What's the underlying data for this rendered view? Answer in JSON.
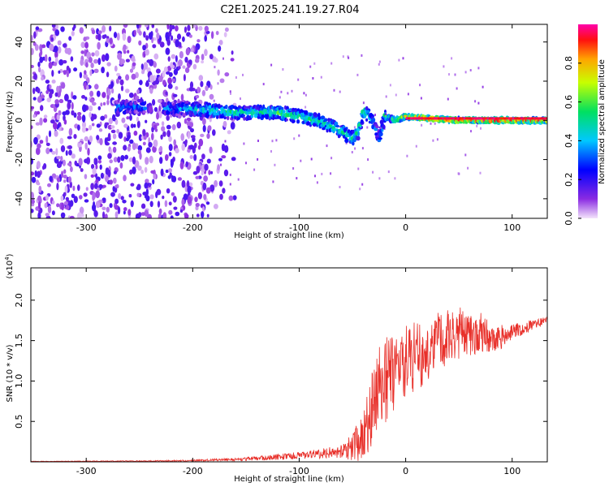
{
  "chart_data": [
    {
      "type": "heatmap",
      "title": "C2E1.2025.241.19.27.R04",
      "xlabel": "Height of straight line (km)",
      "ylabel": "Frequency (Hz)",
      "xlim": [
        -352,
        133
      ],
      "ylim": [
        -50,
        49
      ],
      "xticks": [
        -300,
        -200,
        -100,
        0,
        100
      ],
      "xtick_labels": [
        "-300",
        "-200",
        "-100",
        "0",
        "100"
      ],
      "yticks": [
        -40,
        -20,
        0,
        20,
        40
      ],
      "ytick_labels": [
        "-40",
        "-20",
        "0",
        "20",
        "40"
      ],
      "colorbar": {
        "label": "Normalized spectral amplitude",
        "range": [
          0,
          1
        ],
        "ticks": [
          0.0,
          0.2,
          0.4,
          0.6,
          0.8
        ],
        "tick_labels": [
          "0.0",
          "0.2",
          "0.4",
          "0.6",
          "0.8"
        ]
      },
      "track": {
        "x": [
          -270,
          -250,
          -225,
          -200,
          -180,
          -160,
          -140,
          -120,
          -100,
          -85,
          -70,
          -60,
          -50,
          -45,
          -40,
          -35,
          -30,
          -25,
          -20,
          -10,
          0,
          20,
          50,
          100,
          133
        ],
        "center": [
          7,
          7,
          6,
          6,
          5,
          4,
          4,
          4,
          2,
          0,
          -3,
          -6,
          -9,
          -6,
          5,
          2,
          -2,
          -10,
          2,
          0,
          2,
          1,
          0,
          0,
          0
        ],
        "amplitude": [
          0.3,
          0.3,
          0.3,
          0.4,
          0.5,
          0.5,
          0.5,
          0.55,
          0.5,
          0.5,
          0.5,
          0.5,
          0.5,
          0.5,
          0.55,
          0.5,
          0.3,
          0.3,
          0.55,
          0.6,
          0.8,
          0.9,
          0.95,
          0.95,
          0.9
        ]
      },
      "noise_region": {
        "x_from": -352,
        "x_to": -185,
        "amplitude": 0.2
      }
    },
    {
      "type": "line",
      "xlabel": "Height of straight line (km)",
      "ylabel": "SNR (10 * v/v)",
      "y_multiplier": "(x10",
      "y_multiplier_exp": "4",
      "y_multiplier_close": ")",
      "xlim": [
        -352,
        133
      ],
      "ylim": [
        0,
        2.4
      ],
      "xticks": [
        -300,
        -200,
        -100,
        0,
        100
      ],
      "xtick_labels": [
        "-300",
        "-200",
        "-100",
        "0",
        "100"
      ],
      "yticks": [
        0.5,
        1.0,
        1.5,
        2.0
      ],
      "ytick_labels": [
        "0.5",
        "1.0",
        "1.5",
        "2.0"
      ],
      "series": [
        {
          "name": "SNR",
          "color": "#e8302a",
          "x": [
            -352,
            -250,
            -200,
            -160,
            -130,
            -110,
            -95,
            -80,
            -65,
            -55,
            -45,
            -38,
            -30,
            -25,
            -20,
            -15,
            -10,
            -5,
            0,
            10,
            20,
            30,
            40,
            50,
            60,
            70,
            80,
            90,
            100,
            110,
            120,
            133
          ],
          "mean": [
            0.005,
            0.01,
            0.015,
            0.03,
            0.05,
            0.07,
            0.08,
            0.1,
            0.12,
            0.15,
            0.25,
            0.45,
            0.7,
            0.9,
            1.0,
            1.05,
            1.1,
            1.2,
            1.25,
            1.3,
            1.4,
            1.5,
            1.55,
            1.6,
            1.6,
            1.6,
            1.55,
            1.55,
            1.6,
            1.65,
            1.7,
            1.75
          ],
          "amp": [
            0.003,
            0.005,
            0.01,
            0.02,
            0.03,
            0.04,
            0.05,
            0.06,
            0.08,
            0.12,
            0.25,
            0.4,
            0.5,
            0.55,
            0.55,
            0.5,
            0.45,
            0.45,
            0.45,
            0.45,
            0.4,
            0.35,
            0.35,
            0.35,
            0.3,
            0.25,
            0.2,
            0.15,
            0.1,
            0.08,
            0.06,
            0.05
          ],
          "samples": 1400,
          "seed": 7
        }
      ]
    }
  ]
}
